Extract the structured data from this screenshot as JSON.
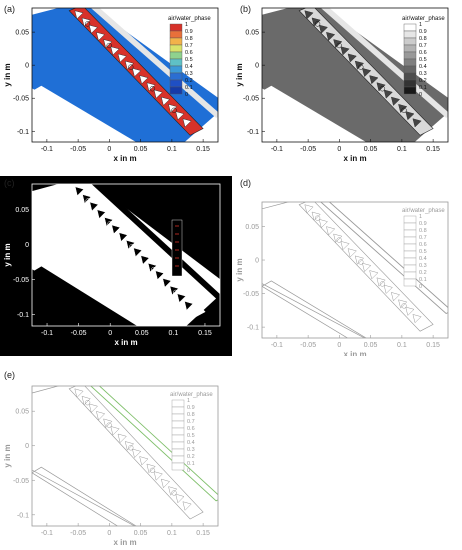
{
  "figure": {
    "panels": [
      {
        "label": "(a)",
        "style": "color",
        "xlabel": "x in m",
        "ylabel": "y in m",
        "xticks": [
          "-0.1",
          "-0.05",
          "0",
          "0.05",
          "0.1",
          "0.15"
        ],
        "yticks": [
          "0.05",
          "0",
          "-0.05",
          "-0.1"
        ],
        "legend_title": "air/water_phase",
        "legend_ticks": [
          "1",
          "0.9",
          "0.8",
          "0.7",
          "0.6",
          "0.5",
          "0.4",
          "0.3",
          "0.2",
          "0.1",
          "0"
        ],
        "colors": {
          "water": "#1f6fd6",
          "air": "#ffffff",
          "channel": "#d7322a",
          "frame": "#000000"
        }
      },
      {
        "label": "(b)",
        "style": "gray",
        "xlabel": "x in m",
        "ylabel": "y in m",
        "xticks": [
          "-0.1",
          "-0.05",
          "0",
          "0.05",
          "0.1",
          "0.15"
        ],
        "yticks": [
          "0.05",
          "0",
          "-0.05",
          "-0.1"
        ],
        "legend_title": "air/water_phase",
        "legend_ticks": [
          "1",
          "0.9",
          "0.8",
          "0.7",
          "0.6",
          "0.5",
          "0.4",
          "0.3",
          "0.2",
          "0.1",
          "0"
        ],
        "colors": {
          "water": "#6a6a6a",
          "air": "#ffffff",
          "channel": "#d9d9d9",
          "frame": "#000000"
        }
      },
      {
        "label": "(c)",
        "style": "inverted",
        "xlabel": "x in m",
        "ylabel": "y in m",
        "xticks": [
          "-0.1",
          "-0.05",
          "0",
          "0.05",
          "0.1",
          "0.15"
        ],
        "yticks": [
          "0.05",
          "0",
          "-0.05",
          "-0.1"
        ],
        "legend_title": "",
        "legend_ticks": [],
        "colors": {
          "water": "#ffffff",
          "air": "#000000",
          "channel": "#ffffff",
          "frame": "#ffffff"
        }
      },
      {
        "label": "(d)",
        "style": "outline",
        "xlabel": "x in m",
        "ylabel": "y in m",
        "xticks": [
          "-0.1",
          "-0.05",
          "0",
          "0.05",
          "0.1",
          "0.15"
        ],
        "yticks": [
          "0.05",
          "0",
          "-0.05",
          "-0.1"
        ],
        "legend_title": "air/water_phase",
        "legend_ticks": [
          "1",
          "0.9",
          "0.8",
          "0.7",
          "0.6",
          "0.5",
          "0.4",
          "0.3",
          "0.2",
          "0.1",
          "0"
        ],
        "colors": {
          "water": "#ffffff",
          "air": "#ffffff",
          "channel": "#ffffff",
          "frame": "#9a9a9a"
        }
      },
      {
        "label": "(e)",
        "style": "outline-green",
        "xlabel": "x in m",
        "ylabel": "y in m",
        "xticks": [
          "-0.1",
          "-0.05",
          "0",
          "0.05",
          "0.1",
          "0.15"
        ],
        "yticks": [
          "0.05",
          "0",
          "-0.05",
          "-0.1"
        ],
        "legend_title": "air/water_phase",
        "legend_ticks": [
          "1",
          "0.9",
          "0.8",
          "0.7",
          "0.6",
          "0.5",
          "0.4",
          "0.3",
          "0.2",
          "0.1",
          "0"
        ],
        "colors": {
          "water": "#ffffff",
          "air": "#ffffff",
          "channel": "#ffffff",
          "frame": "#9a9a9a",
          "accent": "#7fbf6a"
        }
      }
    ]
  }
}
